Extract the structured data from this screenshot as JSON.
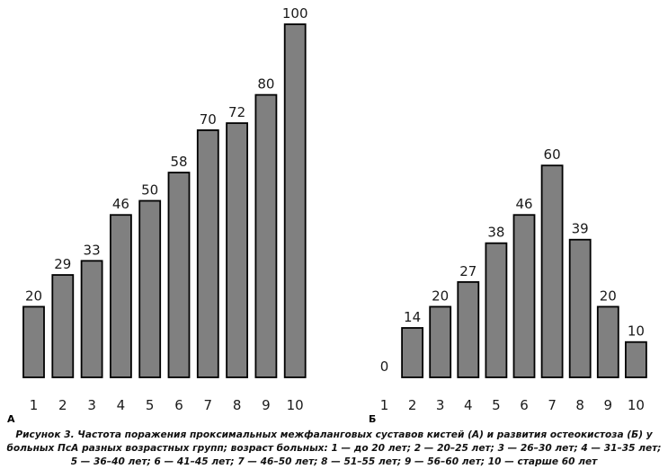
{
  "chart_data": [
    {
      "type": "bar",
      "panel_label": "А",
      "categories": [
        "1",
        "2",
        "3",
        "4",
        "5",
        "6",
        "7",
        "8",
        "9",
        "10"
      ],
      "values": [
        20,
        29,
        33,
        46,
        50,
        58,
        70,
        72,
        80,
        100
      ],
      "ylim": [
        0,
        100
      ],
      "colors": {
        "bar": "#808080",
        "stroke": "#000000"
      }
    },
    {
      "type": "bar",
      "panel_label": "Б",
      "categories": [
        "1",
        "2",
        "3",
        "4",
        "5",
        "6",
        "7",
        "8",
        "9",
        "10"
      ],
      "values": [
        0,
        14,
        20,
        27,
        38,
        46,
        60,
        39,
        20,
        10
      ],
      "ylim": [
        0,
        100
      ],
      "colors": {
        "bar": "#808080",
        "stroke": "#000000"
      }
    }
  ],
  "caption": "Рисунок 3. Частота поражения проксимальных межфаланговых суставов кистей (А) и развития остеокистоза (Б) у больных ПсА разных возрастных групп; возраст больных: 1 — до 20 лет; 2 — 20–25 лет; 3 — 26–30 лет; 4 — 31–35 лет; 5 — 36–40 лет; 6 — 41–45 лет; 7 — 46–50 лет; 8 — 51–55 лет; 9 — 56–60 лет; 10 — старше 60 лет"
}
